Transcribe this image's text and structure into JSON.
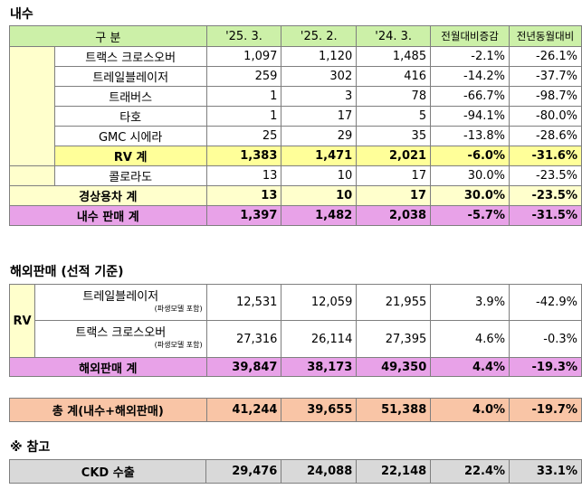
{
  "domestic": {
    "title": "내수",
    "headers": [
      "구 분",
      "'25. 3.",
      "'25. 2.",
      "'24. 3.",
      "전월대비증감",
      "전년동월대비"
    ],
    "rv_rows": [
      {
        "name": "트랙스 크로스오버",
        "v": [
          "1,097",
          "1,120",
          "1,485",
          "-2.1%",
          "-26.1%"
        ]
      },
      {
        "name": "트레일블레이저",
        "v": [
          "259",
          "302",
          "416",
          "-14.2%",
          "-37.7%"
        ]
      },
      {
        "name": "트래버스",
        "v": [
          "1",
          "3",
          "78",
          "-66.7%",
          "-98.7%"
        ]
      },
      {
        "name": "타호",
        "v": [
          "1",
          "17",
          "5",
          "-94.1%",
          "-80.0%"
        ]
      },
      {
        "name": "GMC 시에라",
        "v": [
          "25",
          "29",
          "35",
          "-13.8%",
          "-28.6%"
        ]
      }
    ],
    "rv_total": {
      "name": "RV 계",
      "v": [
        "1,383",
        "1,471",
        "2,021",
        "-6.0%",
        "-31.6%"
      ]
    },
    "lcv_rows": [
      {
        "name": "콜로라도",
        "v": [
          "13",
          "10",
          "17",
          "30.0%",
          "-23.5%"
        ]
      }
    ],
    "lcv_total": {
      "name": "경상용차 계",
      "v": [
        "13",
        "10",
        "17",
        "30.0%",
        "-23.5%"
      ]
    },
    "total": {
      "name": "내수 판매 계",
      "v": [
        "1,397",
        "1,482",
        "2,038",
        "-5.7%",
        "-31.5%"
      ]
    }
  },
  "export": {
    "title": "해외판매 (선적 기준)",
    "group_label": "RV",
    "note": "(파생모델 포함)",
    "rows": [
      {
        "name": "트레일블레이저",
        "v": [
          "12,531",
          "12,059",
          "21,955",
          "3.9%",
          "-42.9%"
        ]
      },
      {
        "name": "트랙스 크로스오버",
        "v": [
          "27,316",
          "26,114",
          "27,395",
          "4.6%",
          "-0.3%"
        ]
      }
    ],
    "total": {
      "name": "해외판매 계",
      "v": [
        "39,847",
        "38,173",
        "49,350",
        "4.4%",
        "-19.3%"
      ]
    }
  },
  "grand_total": {
    "name": "총   계(내수+해외판매)",
    "v": [
      "41,244",
      "39,655",
      "51,388",
      "4.0%",
      "-19.7%"
    ]
  },
  "reference": {
    "title": "※ 참고",
    "row": {
      "name": "CKD 수출",
      "v": [
        "29,476",
        "24,088",
        "22,148",
        "22.4%",
        "33.1%"
      ]
    }
  },
  "colors": {
    "header": "#ccf0a8",
    "rv_subtotal": "#ffff99",
    "domestic_total": "#e8a2e8",
    "grand_total": "#f9c5a6",
    "reference": "#d9d9d9"
  }
}
